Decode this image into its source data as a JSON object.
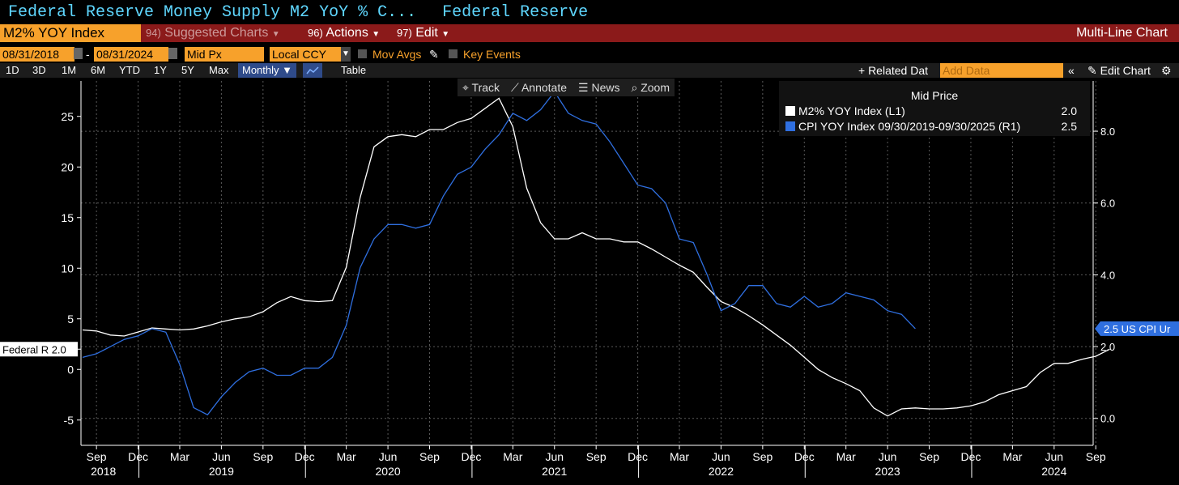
{
  "header": {
    "title_left": "Federal Reserve Money Supply M2 YoY % C...",
    "title_right": "Federal Reserve"
  },
  "menu": {
    "security": "M2% YOY Index",
    "suggested_num": "94)",
    "suggested": "Suggested Charts",
    "actions_num": "96)",
    "actions": "Actions",
    "edit_num": "97)",
    "edit": "Edit",
    "chart_type": "Multi-Line Chart"
  },
  "controls": {
    "start_date": "08/31/2018",
    "end_date": "08/31/2024",
    "price_field": "Mid Px",
    "currency": "Local CCY",
    "mov_avgs": "Mov Avgs",
    "key_events": "Key Events",
    "ranges": [
      "1D",
      "3D",
      "1M",
      "6M",
      "YTD",
      "1Y",
      "5Y",
      "Max"
    ],
    "frequency": "Monthly ▼",
    "table": "Table",
    "related": "+ Related Dat",
    "add_data_placeholder": "Add Data",
    "edit_chart": "Edit Chart"
  },
  "tools": {
    "track": "Track",
    "annotate": "Annotate",
    "news": "News",
    "zoom": "Zoom"
  },
  "legend": {
    "header": "Mid Price",
    "entries": [
      {
        "label": "M2% YOY Index  (L1)",
        "value": "2.0",
        "color": "#ffffff"
      },
      {
        "label": "CPI YOY Index 09/30/2019-09/30/2025  (R1)",
        "value": "2.5",
        "color": "#2f6fe0"
      }
    ]
  },
  "tags": {
    "left": "Federal R 2.0",
    "right": "2.5 US CPI Ur"
  },
  "chart_data": {
    "type": "line",
    "x_start": "2018-08",
    "x_step": "month",
    "left_axis": {
      "ticks": [
        25,
        20,
        15,
        10,
        5,
        0,
        -5
      ],
      "ylim": [
        -7.5,
        28.5
      ]
    },
    "right_axis": {
      "ticks": [
        "8.0",
        "6.0",
        "4.0",
        "2.0",
        "0.0"
      ],
      "ylim": [
        -0.75,
        9.4
      ]
    },
    "month_ticks": [
      "Sep",
      "Dec",
      "Mar",
      "Jun",
      "Sep",
      "Dec",
      "Mar",
      "Jun",
      "Sep",
      "Dec",
      "Mar",
      "Jun",
      "Sep",
      "Dec",
      "Mar",
      "Jun",
      "Sep",
      "Dec",
      "Mar",
      "Jun",
      "Sep",
      "Dec",
      "Mar",
      "Jun",
      "Sep"
    ],
    "year_ticks": [
      "2018",
      "2019",
      "2020",
      "2021",
      "2022",
      "2023",
      "2024"
    ],
    "series": [
      {
        "name": "M2% YOY Index",
        "axis": "left",
        "color": "#ffffff",
        "values": [
          3.9,
          3.8,
          3.4,
          3.3,
          3.7,
          4.1,
          4.0,
          3.9,
          4.0,
          4.3,
          4.7,
          5.0,
          5.2,
          5.7,
          6.6,
          7.2,
          6.8,
          6.7,
          6.8,
          10.1,
          17.0,
          22.0,
          23.0,
          23.2,
          23.0,
          23.7,
          23.7,
          24.4,
          24.8,
          25.8,
          26.8,
          24.0,
          17.9,
          14.5,
          12.9,
          12.9,
          13.5,
          12.9,
          12.9,
          12.6,
          12.6,
          11.9,
          11.1,
          10.3,
          9.6,
          8.1,
          6.7,
          6.1,
          5.3,
          4.4,
          3.4,
          2.4,
          1.2,
          0.0,
          -0.8,
          -1.4,
          -2.1,
          -3.8,
          -4.6,
          -3.9,
          -3.8,
          -3.9,
          -3.9,
          -3.8,
          -3.6,
          -3.2,
          -2.5,
          -2.1,
          -1.7,
          -0.3,
          0.6,
          0.6,
          1.0,
          1.3,
          2.0
        ]
      },
      {
        "name": "CPI YOY Index",
        "axis": "right",
        "color": "#2f6fe0",
        "values": [
          1.7,
          1.8,
          2.0,
          2.2,
          2.3,
          2.5,
          2.4,
          1.5,
          0.3,
          0.1,
          0.6,
          1.0,
          1.3,
          1.4,
          1.2,
          1.2,
          1.4,
          1.4,
          1.7,
          2.6,
          4.2,
          5.0,
          5.4,
          5.4,
          5.3,
          5.4,
          6.2,
          6.8,
          7.0,
          7.5,
          7.9,
          8.5,
          8.3,
          8.6,
          9.1,
          8.5,
          8.3,
          8.2,
          7.7,
          7.1,
          6.5,
          6.4,
          6.0,
          5.0,
          4.9,
          4.0,
          3.0,
          3.2,
          3.7,
          3.7,
          3.2,
          3.1,
          3.4,
          3.1,
          3.2,
          3.5,
          3.4,
          3.3,
          3.0,
          2.9,
          2.5
        ]
      }
    ]
  }
}
